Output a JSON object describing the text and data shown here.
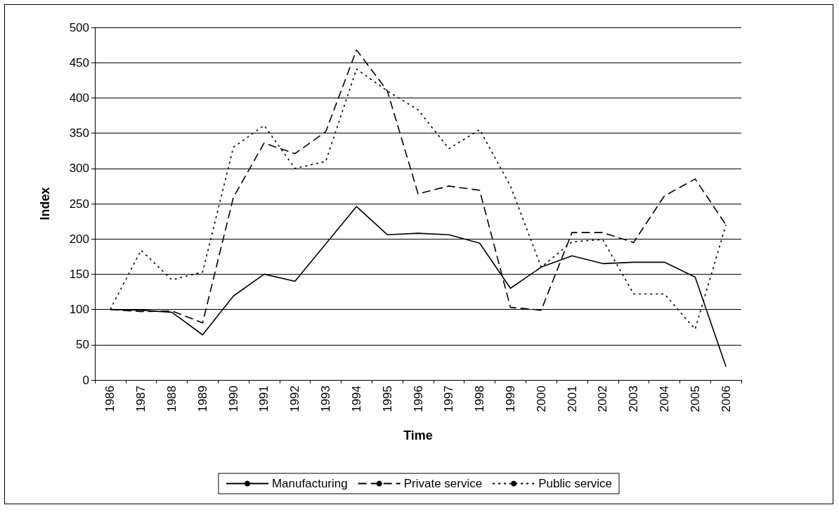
{
  "chart_data": {
    "type": "line",
    "xlabel": "Time",
    "ylabel": "Index",
    "categories": [
      "1986",
      "1987",
      "1988",
      "1989",
      "1990",
      "1991",
      "1992",
      "1993",
      "1994",
      "1995",
      "1996",
      "1997",
      "1998",
      "1999",
      "2000",
      "2001",
      "2002",
      "2003",
      "2004",
      "2005",
      "2006"
    ],
    "series": [
      {
        "name": "Manufacturing",
        "color": "#000000",
        "line_style": "solid",
        "values": [
          100,
          99,
          96,
          64,
          119,
          150,
          140,
          193,
          246,
          206,
          208,
          206,
          194,
          130,
          160,
          176,
          165,
          167,
          167,
          146,
          19
        ]
      },
      {
        "name": "Private service",
        "color": "#000000",
        "line_style": "dashed",
        "values": [
          100,
          97,
          98,
          81,
          259,
          336,
          321,
          352,
          468,
          410,
          264,
          275,
          269,
          103,
          99,
          209,
          209,
          195,
          261,
          285,
          220
        ]
      },
      {
        "name": "Public service",
        "color": "#000000",
        "line_style": "dotted",
        "values": [
          100,
          184,
          142,
          153,
          330,
          361,
          300,
          310,
          441,
          410,
          383,
          328,
          355,
          275,
          160,
          196,
          199,
          122,
          122,
          72,
          220
        ]
      }
    ],
    "ylim": [
      0,
      500
    ],
    "yticks": [
      0,
      50,
      100,
      150,
      200,
      250,
      300,
      350,
      400,
      450,
      500
    ],
    "grid": "y",
    "legend": "bottom",
    "marker": "none"
  }
}
